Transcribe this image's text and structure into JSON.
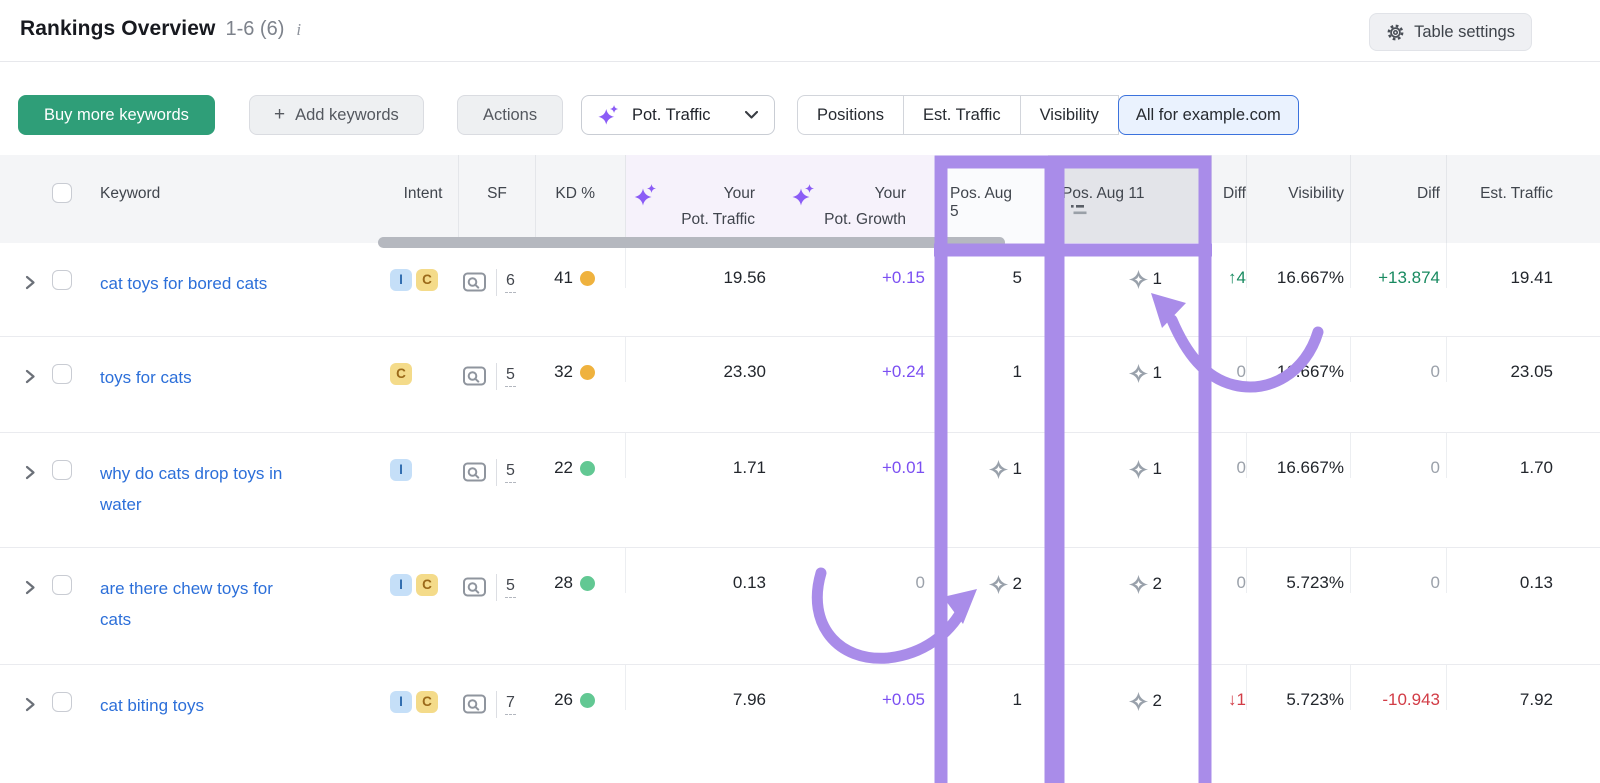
{
  "title_bar": {
    "title": "Rankings Overview",
    "range": "1-6 (6)",
    "info_icon": "i",
    "table_settings_label": "Table settings"
  },
  "toolbar": {
    "buy_button": "Buy more keywords",
    "add_button": "Add keywords",
    "plus_icon": "+",
    "actions_button": "Actions",
    "metric_dropdown": "Pot. Traffic",
    "view_tabs": [
      "Positions",
      "Est. Traffic",
      "Visibility",
      "All for example.com"
    ],
    "active_view_tab": "All for example.com"
  },
  "table": {
    "columns": {
      "keyword": "Keyword",
      "intent": "Intent",
      "sf": "SF",
      "kd": "KD %",
      "pot_traffic_line1": "Your",
      "pot_traffic_line2": "Pot. Traffic",
      "pot_growth_line1": "Your",
      "pot_growth_line2": "Pot. Growth",
      "pos_first": "Pos. Aug 5",
      "pos_last": "Pos. Aug 11",
      "diff_pos": "Diff",
      "visibility": "Visibility",
      "diff_visibility": "Diff",
      "est_traffic": "Est. Traffic"
    },
    "rows": [
      {
        "keyword": "cat toys for bored cats",
        "intents": [
          "I",
          "C"
        ],
        "sf": "6",
        "kd": "41",
        "kd_level": "med",
        "pot_traffic": "19.56",
        "pot_growth": "+0.15",
        "growth_style": "purple",
        "pos_first": {
          "star": false,
          "value": "5"
        },
        "pos_last": {
          "star": true,
          "value": "1"
        },
        "diff_pos": {
          "text": "↑4",
          "style": "green"
        },
        "visibility": "16.667%",
        "diff_visibility": {
          "text": "+13.874",
          "style": "green"
        },
        "est_traffic": "19.41"
      },
      {
        "keyword": "toys for cats",
        "intents": [
          "C"
        ],
        "sf": "5",
        "kd": "32",
        "kd_level": "med",
        "pot_traffic": "23.30",
        "pot_growth": "+0.24",
        "growth_style": "purple",
        "pos_first": {
          "star": false,
          "value": "1"
        },
        "pos_last": {
          "star": true,
          "value": "1"
        },
        "diff_pos": {
          "text": "0",
          "style": "gray"
        },
        "visibility": "16.667%",
        "diff_visibility": {
          "text": "0",
          "style": "gray"
        },
        "est_traffic": "23.05"
      },
      {
        "keyword": "why do cats drop toys in water",
        "intents": [
          "I"
        ],
        "sf": "5",
        "kd": "22",
        "kd_level": "easy",
        "pot_traffic": "1.71",
        "pot_growth": "+0.01",
        "growth_style": "purple",
        "pos_first": {
          "star": true,
          "value": "1"
        },
        "pos_last": {
          "star": true,
          "value": "1"
        },
        "diff_pos": {
          "text": "0",
          "style": "gray"
        },
        "visibility": "16.667%",
        "diff_visibility": {
          "text": "0",
          "style": "gray"
        },
        "est_traffic": "1.70"
      },
      {
        "keyword": "are there chew toys for cats",
        "intents": [
          "I",
          "C"
        ],
        "sf": "5",
        "kd": "28",
        "kd_level": "easy",
        "pot_traffic": "0.13",
        "pot_growth": "0",
        "growth_style": "gray",
        "pos_first": {
          "star": true,
          "value": "2"
        },
        "pos_last": {
          "star": true,
          "value": "2"
        },
        "diff_pos": {
          "text": "0",
          "style": "gray"
        },
        "visibility": "5.723%",
        "diff_visibility": {
          "text": "0",
          "style": "gray"
        },
        "est_traffic": "0.13"
      },
      {
        "keyword": "cat biting toys",
        "intents": [
          "I",
          "C"
        ],
        "sf": "7",
        "kd": "26",
        "kd_level": "easy",
        "pot_traffic": "7.96",
        "pot_growth": "+0.05",
        "growth_style": "purple",
        "pos_first": {
          "star": false,
          "value": "1"
        },
        "pos_last": {
          "star": true,
          "value": "2"
        },
        "diff_pos": {
          "text": "↓1",
          "style": "red"
        },
        "visibility": "5.723%",
        "diff_visibility": {
          "text": "-10.943",
          "style": "red"
        },
        "est_traffic": "7.92"
      }
    ]
  },
  "colors": {
    "annotation_purple": "#a98ce9",
    "growth_purple": "#7b4ff2",
    "positive_green": "#188a60",
    "negative_red": "#d23c46",
    "link_blue": "#2c6fd9",
    "buy_button_green": "#2f9e78",
    "kd_medium": "#efb23e",
    "kd_easy": "#62c893"
  }
}
